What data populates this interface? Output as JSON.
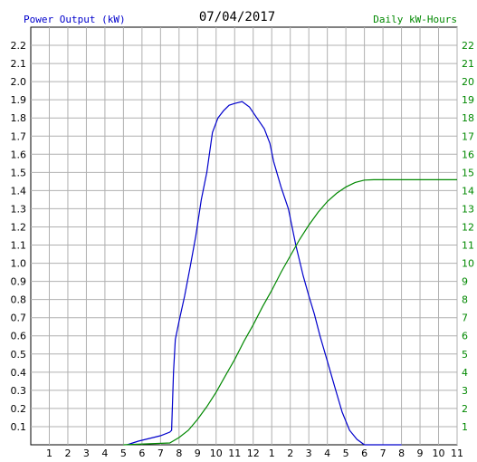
{
  "chart_data": {
    "type": "line",
    "title": "07/04/2017",
    "ylabel": "Power Output (kW)",
    "y2label": "Daily kW-Hours",
    "x_tick_labels": [
      "1",
      "2",
      "3",
      "4",
      "5",
      "6",
      "7",
      "8",
      "9",
      "10",
      "11",
      "12",
      "1",
      "2",
      "3",
      "4",
      "5",
      "6",
      "7",
      "8",
      "9",
      "10",
      "11"
    ],
    "xlim": [
      0,
      23
    ],
    "ylim": [
      0,
      2.3
    ],
    "y_ticks": [
      "0.1",
      "0.2",
      "0.3",
      "0.4",
      "0.5",
      "0.6",
      "0.7",
      "0.8",
      "0.9",
      "1.0",
      "1.1",
      "1.2",
      "1.3",
      "1.4",
      "1.5",
      "1.6",
      "1.7",
      "1.8",
      "1.9",
      "2.0",
      "2.1",
      "2.2"
    ],
    "y2lim": [
      0,
      23
    ],
    "y2_ticks": [
      "1",
      "2",
      "3",
      "4",
      "5",
      "6",
      "7",
      "8",
      "9",
      "10",
      "11",
      "12",
      "13",
      "14",
      "15",
      "16",
      "17",
      "18",
      "19",
      "20",
      "21",
      "22"
    ],
    "grid": true,
    "series": [
      {
        "name": "Power Output (kW)",
        "axis": "left",
        "color": "#0000cc",
        "x": [
          5.2,
          5.5,
          5.8,
          6.2,
          6.6,
          7.0,
          7.5,
          7.6,
          7.7,
          7.8,
          8.0,
          8.3,
          8.6,
          8.9,
          9.2,
          9.5,
          9.8,
          10.1,
          10.4,
          10.7,
          11.0,
          11.4,
          11.8,
          12.2,
          12.6,
          12.9,
          13.1,
          13.5,
          13.9,
          14.3,
          14.7,
          15.0,
          15.3,
          15.6,
          16.0,
          16.4,
          16.8,
          17.2,
          17.6,
          18.0,
          18.4,
          18.8,
          19.2,
          19.6,
          20.0
        ],
        "y": [
          0.0,
          0.01,
          0.02,
          0.03,
          0.04,
          0.05,
          0.07,
          0.08,
          0.4,
          0.58,
          0.68,
          0.82,
          0.98,
          1.15,
          1.35,
          1.5,
          1.72,
          1.8,
          1.84,
          1.87,
          1.88,
          1.89,
          1.86,
          1.8,
          1.74,
          1.66,
          1.56,
          1.42,
          1.3,
          1.1,
          0.93,
          0.82,
          0.72,
          0.6,
          0.46,
          0.32,
          0.18,
          0.08,
          0.03,
          0.0,
          0.0,
          0.0,
          0.0,
          0.0,
          0.0
        ]
      },
      {
        "name": "Daily kW-Hours",
        "axis": "right",
        "color": "#008800",
        "x": [
          5.0,
          7.5,
          8.0,
          8.5,
          9.0,
          9.5,
          10.0,
          10.5,
          11.0,
          11.5,
          12.0,
          12.5,
          13.0,
          13.5,
          14.0,
          14.5,
          15.0,
          15.5,
          16.0,
          16.5,
          17.0,
          17.5,
          18.0,
          18.5,
          19.0,
          20.0,
          21.0,
          22.0,
          23.0
        ],
        "y": [
          0.0,
          0.1,
          0.4,
          0.8,
          1.4,
          2.1,
          2.9,
          3.8,
          4.7,
          5.7,
          6.6,
          7.6,
          8.5,
          9.5,
          10.4,
          11.3,
          12.1,
          12.8,
          13.4,
          13.85,
          14.2,
          14.45,
          14.58,
          14.6,
          14.6,
          14.6,
          14.6,
          14.6,
          14.6
        ]
      }
    ]
  }
}
